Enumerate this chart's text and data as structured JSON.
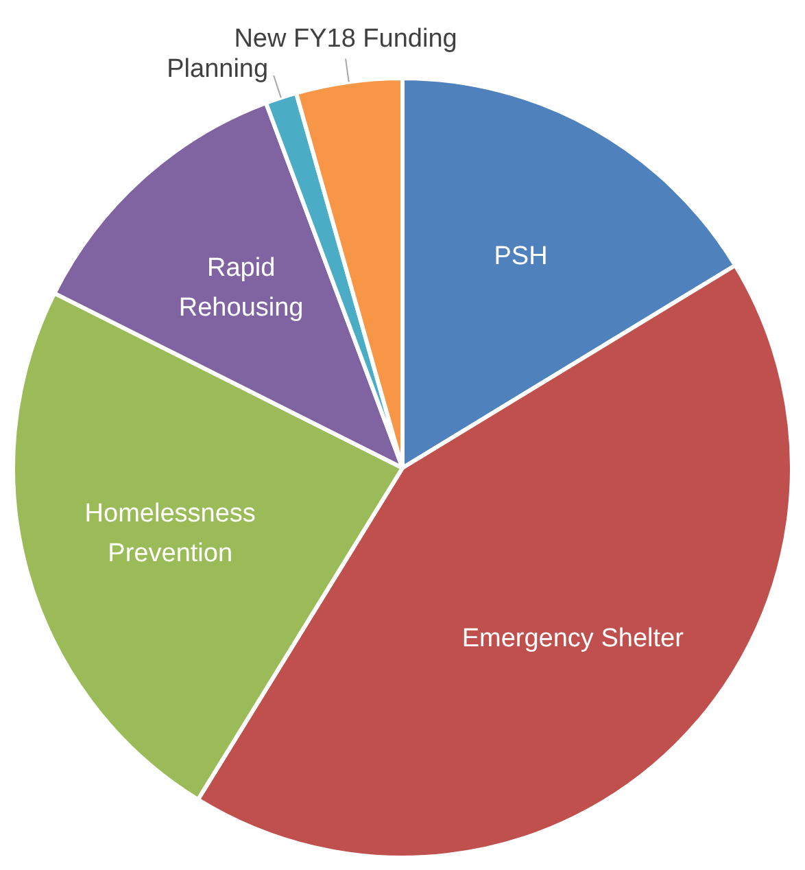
{
  "chart_data": {
    "type": "pie",
    "categories": [
      "PSH",
      "Emergency Shelter",
      "Homelessness Prevention",
      "Rapid Rehousing",
      "Planning",
      "New FY18 Funding"
    ],
    "values": [
      16.3,
      42.5,
      23.6,
      11.9,
      1.3,
      4.4
    ],
    "colors": [
      "#4f81bd",
      "#c0504d",
      "#9bbb59",
      "#8064a2",
      "#4bacc6",
      "#f79646"
    ],
    "legend": false
  }
}
